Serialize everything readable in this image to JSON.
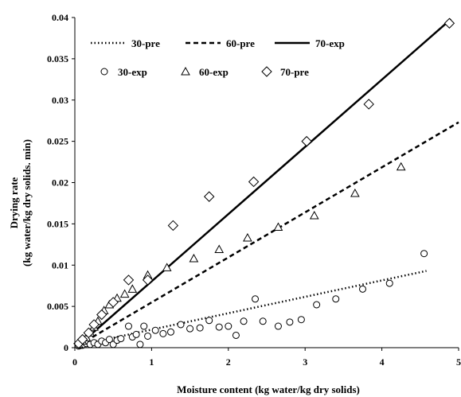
{
  "chart_data": {
    "type": "scatter",
    "xlabel": "Moisture content (kg water/kg dry solids)",
    "ylabel_line1": "Drying rate",
    "ylabel_line2": "(kg water/kg dry solids. min)",
    "xlim": [
      0,
      5
    ],
    "ylim": [
      0,
      0.04
    ],
    "xticks": [
      0,
      1,
      2,
      3,
      4,
      5
    ],
    "xtick_labels": [
      "0",
      "1",
      "2",
      "3",
      "4",
      "5"
    ],
    "yticks": [
      0,
      0.005,
      0.01,
      0.015,
      0.02,
      0.025,
      0.03,
      0.035,
      0.04
    ],
    "ytick_labels": [
      "0",
      "0.005",
      "0.01",
      "0.015",
      "0.02",
      "0.025",
      "0.03",
      "0.035",
      "0.04"
    ],
    "grid": false,
    "legend_position": "top-left",
    "lines": [
      {
        "name": "30-pre",
        "style": "dotted",
        "x": [
          0.05,
          4.58
        ],
        "y": [
          0.0003,
          0.0093
        ]
      },
      {
        "name": "60-pre",
        "style": "dashed",
        "x": [
          0.05,
          5.0
        ],
        "y": [
          0.0003,
          0.0273
        ]
      },
      {
        "name": "70-exp",
        "style": "solid",
        "x": [
          0.05,
          4.9
        ],
        "y": [
          0.0003,
          0.0398
        ]
      }
    ],
    "series": [
      {
        "name": "30-exp",
        "marker": "circle",
        "x": [
          0.05,
          0.08,
          0.1,
          0.15,
          0.2,
          0.25,
          0.3,
          0.35,
          0.4,
          0.45,
          0.5,
          0.55,
          0.6,
          0.7,
          0.75,
          0.8,
          0.85,
          0.9,
          0.95,
          1.05,
          1.15,
          1.25,
          1.38,
          1.5,
          1.63,
          1.75,
          1.88,
          2.0,
          2.1,
          2.2,
          2.35,
          2.45,
          2.65,
          2.8,
          2.95,
          3.15,
          3.4,
          3.75,
          4.1,
          4.55
        ],
        "y": [
          0.0002,
          0.0003,
          0.0003,
          0.0005,
          0.0004,
          0.0006,
          0.0004,
          0.0008,
          0.0006,
          0.001,
          0.0004,
          0.0009,
          0.0011,
          0.0026,
          0.0013,
          0.0016,
          0.0004,
          0.0026,
          0.0014,
          0.0021,
          0.0017,
          0.0019,
          0.0028,
          0.0023,
          0.0024,
          0.0033,
          0.0025,
          0.0026,
          0.0015,
          0.0032,
          0.0059,
          0.0032,
          0.0026,
          0.0031,
          0.0034,
          0.0052,
          0.0059,
          0.0071,
          0.0078,
          0.0114
        ]
      },
      {
        "name": "60-exp",
        "marker": "triangle",
        "x": [
          0.05,
          0.1,
          0.15,
          0.2,
          0.25,
          0.3,
          0.38,
          0.45,
          0.55,
          0.65,
          0.75,
          0.95,
          1.2,
          1.55,
          1.88,
          2.25,
          2.65,
          3.12,
          3.65,
          4.25
        ],
        "y": [
          0.0004,
          0.0008,
          0.0012,
          0.0018,
          0.0025,
          0.0032,
          0.0045,
          0.0052,
          0.006,
          0.0065,
          0.0071,
          0.0088,
          0.0097,
          0.0108,
          0.0119,
          0.0133,
          0.0146,
          0.016,
          0.0187,
          0.0219
        ]
      },
      {
        "name": "70-pre",
        "marker": "diamond",
        "x": [
          0.05,
          0.1,
          0.18,
          0.25,
          0.35,
          0.5,
          0.7,
          0.95,
          1.28,
          1.75,
          2.33,
          3.02,
          3.83,
          4.88
        ],
        "y": [
          0.0005,
          0.001,
          0.0018,
          0.0028,
          0.004,
          0.0055,
          0.0082,
          0.0082,
          0.0148,
          0.0183,
          0.0201,
          0.025,
          0.0295,
          0.0393
        ]
      }
    ],
    "legend_row1": [
      "30-pre",
      "60-pre",
      "70-exp"
    ],
    "legend_row2": [
      "30-exp",
      "60-exp",
      "70-pre"
    ]
  }
}
